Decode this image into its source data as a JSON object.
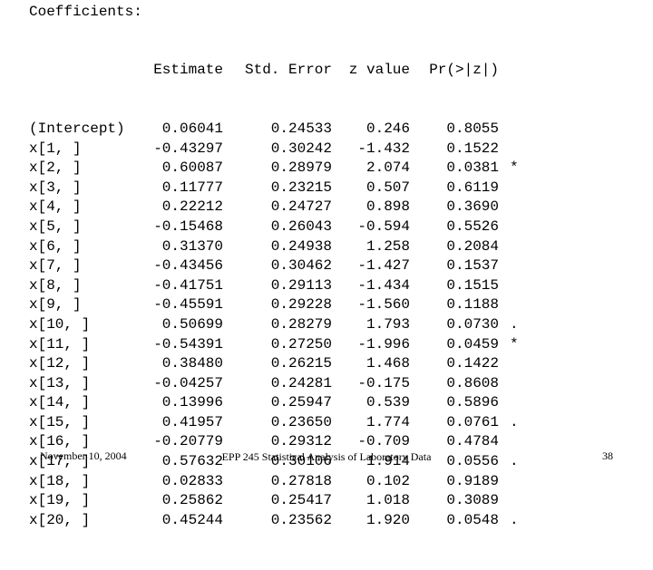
{
  "output": {
    "heading": "Coefficients:",
    "columns": {
      "estimate": "Estimate",
      "std_error": "Std. Error",
      "z_value": "z value",
      "p_value": "Pr(>|z|)"
    },
    "rows": [
      {
        "name": "(Intercept)",
        "estimate": "0.06041",
        "std_error": "0.24533",
        "z_value": "0.246",
        "p_value": "0.8055",
        "sig": ""
      },
      {
        "name": "x[1, ]",
        "estimate": "-0.43297",
        "std_error": "0.30242",
        "z_value": "-1.432",
        "p_value": "0.1522",
        "sig": ""
      },
      {
        "name": "x[2, ]",
        "estimate": "0.60087",
        "std_error": "0.28979",
        "z_value": "2.074",
        "p_value": "0.0381",
        "sig": "*"
      },
      {
        "name": "x[3, ]",
        "estimate": "0.11777",
        "std_error": "0.23215",
        "z_value": "0.507",
        "p_value": "0.6119",
        "sig": ""
      },
      {
        "name": "x[4, ]",
        "estimate": "0.22212",
        "std_error": "0.24727",
        "z_value": "0.898",
        "p_value": "0.3690",
        "sig": ""
      },
      {
        "name": "x[5, ]",
        "estimate": "-0.15468",
        "std_error": "0.26043",
        "z_value": "-0.594",
        "p_value": "0.5526",
        "sig": ""
      },
      {
        "name": "x[6, ]",
        "estimate": "0.31370",
        "std_error": "0.24938",
        "z_value": "1.258",
        "p_value": "0.2084",
        "sig": ""
      },
      {
        "name": "x[7, ]",
        "estimate": "-0.43456",
        "std_error": "0.30462",
        "z_value": "-1.427",
        "p_value": "0.1537",
        "sig": ""
      },
      {
        "name": "x[8, ]",
        "estimate": "-0.41751",
        "std_error": "0.29113",
        "z_value": "-1.434",
        "p_value": "0.1515",
        "sig": ""
      },
      {
        "name": "x[9, ]",
        "estimate": "-0.45591",
        "std_error": "0.29228",
        "z_value": "-1.560",
        "p_value": "0.1188",
        "sig": ""
      },
      {
        "name": "x[10, ]",
        "estimate": "0.50699",
        "std_error": "0.28279",
        "z_value": "1.793",
        "p_value": "0.0730",
        "sig": "."
      },
      {
        "name": "x[11, ]",
        "estimate": "-0.54391",
        "std_error": "0.27250",
        "z_value": "-1.996",
        "p_value": "0.0459",
        "sig": "*"
      },
      {
        "name": "x[12, ]",
        "estimate": "0.38480",
        "std_error": "0.26215",
        "z_value": "1.468",
        "p_value": "0.1422",
        "sig": ""
      },
      {
        "name": "x[13, ]",
        "estimate": "-0.04257",
        "std_error": "0.24281",
        "z_value": "-0.175",
        "p_value": "0.8608",
        "sig": ""
      },
      {
        "name": "x[14, ]",
        "estimate": "0.13996",
        "std_error": "0.25947",
        "z_value": "0.539",
        "p_value": "0.5896",
        "sig": ""
      },
      {
        "name": "x[15, ]",
        "estimate": "0.41957",
        "std_error": "0.23650",
        "z_value": "1.774",
        "p_value": "0.0761",
        "sig": "."
      },
      {
        "name": "x[16, ]",
        "estimate": "-0.20779",
        "std_error": "0.29312",
        "z_value": "-0.709",
        "p_value": "0.4784",
        "sig": ""
      },
      {
        "name": "x[17, ]",
        "estimate": "0.57632",
        "std_error": "0.30106",
        "z_value": "1.914",
        "p_value": "0.0556",
        "sig": "."
      },
      {
        "name": "x[18, ]",
        "estimate": "0.02833",
        "std_error": "0.27818",
        "z_value": "0.102",
        "p_value": "0.9189",
        "sig": ""
      },
      {
        "name": "x[19, ]",
        "estimate": "0.25862",
        "std_error": "0.25417",
        "z_value": "1.018",
        "p_value": "0.3089",
        "sig": ""
      },
      {
        "name": "x[20, ]",
        "estimate": "0.45244",
        "std_error": "0.23562",
        "z_value": "1.920",
        "p_value": "0.0548",
        "sig": "."
      }
    ]
  },
  "footer": {
    "date": "November 10, 2004",
    "course": "EPP 245 Statistical Analysis of Laboratory Data",
    "page_number": "38"
  }
}
